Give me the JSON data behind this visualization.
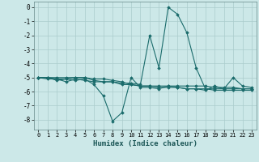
{
  "title": "",
  "xlabel": "Humidex (Indice chaleur)",
  "ylabel": "",
  "bg_color": "#cce8e8",
  "grid_color": "#aacccc",
  "line_color": "#1a6b6b",
  "xlim": [
    -0.5,
    23.5
  ],
  "ylim": [
    -8.7,
    0.4
  ],
  "xticks": [
    0,
    1,
    2,
    3,
    4,
    5,
    6,
    7,
    8,
    9,
    10,
    11,
    12,
    13,
    14,
    15,
    16,
    17,
    18,
    19,
    20,
    21,
    22,
    23
  ],
  "yticks": [
    0,
    -1,
    -2,
    -3,
    -4,
    -5,
    -6,
    -7,
    -8
  ],
  "series": [
    [
      -5.0,
      -5.0,
      -5.2,
      -5.1,
      -5.2,
      -5.1,
      -5.5,
      -6.3,
      -8.1,
      -7.5,
      -5.0,
      -5.7,
      -5.7,
      -5.8,
      -5.6,
      -5.7,
      -5.8,
      -5.8,
      -5.9,
      -5.6,
      -5.8,
      -5.0,
      -5.6,
      -5.7
    ],
    [
      -5.0,
      -5.1,
      -5.1,
      -5.3,
      -5.1,
      -5.2,
      -5.3,
      -5.3,
      -5.3,
      -5.4,
      -5.4,
      -5.5,
      -2.0,
      -4.3,
      0.0,
      -0.5,
      -1.8,
      -4.3,
      -5.8,
      -5.9,
      -5.9,
      -5.9,
      -5.9,
      -5.9
    ],
    [
      -5.0,
      -5.0,
      -5.0,
      -5.0,
      -5.0,
      -5.0,
      -5.2,
      -5.3,
      -5.3,
      -5.5,
      -5.5,
      -5.6,
      -5.6,
      -5.7,
      -5.7,
      -5.7,
      -5.8,
      -5.8,
      -5.8,
      -5.8,
      -5.8,
      -5.8,
      -5.8,
      -5.8
    ],
    [
      -5.0,
      -5.0,
      -5.1,
      -5.1,
      -5.0,
      -5.0,
      -5.1,
      -5.1,
      -5.2,
      -5.3,
      -5.5,
      -5.6,
      -5.6,
      -5.6,
      -5.6,
      -5.6,
      -5.6,
      -5.6,
      -5.6,
      -5.7,
      -5.7,
      -5.7,
      -5.8,
      -5.8
    ]
  ]
}
